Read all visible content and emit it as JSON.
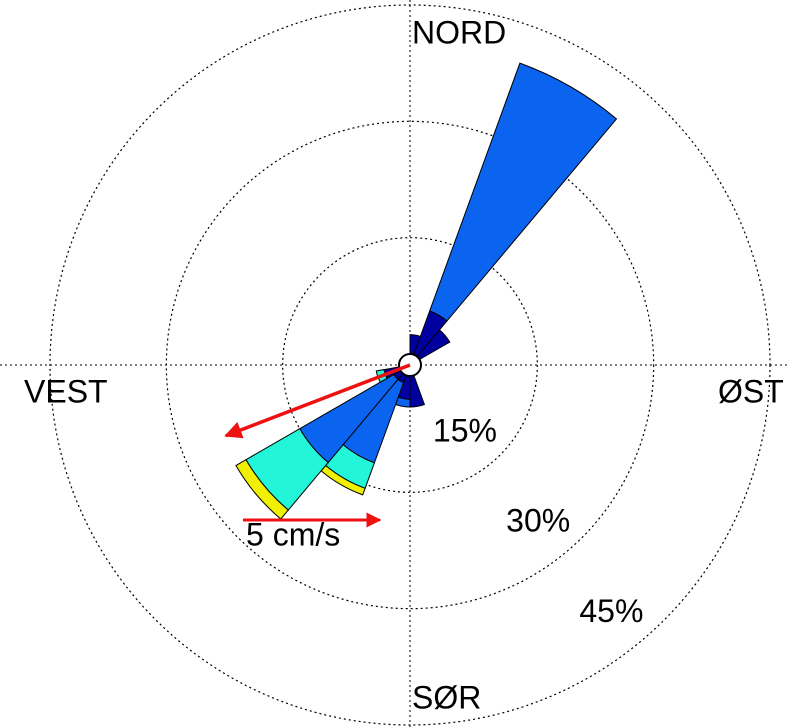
{
  "chart_data": {
    "type": "rose",
    "theta": [
      10,
      30,
      50,
      70,
      90,
      110,
      130,
      150,
      170,
      190,
      210,
      230,
      250,
      270,
      290,
      310,
      330,
      350
    ],
    "sector_width": 20,
    "series": [
      {
        "color": "#0000a0",
        "values": [
          2.5,
          6,
          4.5,
          0,
          0,
          0,
          0,
          0,
          4,
          3,
          1,
          1,
          2,
          0,
          0,
          0,
          0,
          0
        ]
      },
      {
        "color": "#0a64f0",
        "values": [
          0,
          34,
          0,
          0,
          0,
          0,
          0,
          0,
          0,
          1,
          11,
          14,
          0,
          0,
          0,
          0,
          0,
          0
        ]
      },
      {
        "color": "#22f5d8",
        "values": [
          0,
          0,
          0,
          0,
          0,
          0,
          0,
          0,
          0,
          0,
          3.5,
          8,
          1,
          0,
          0,
          0,
          0,
          0
        ]
      },
      {
        "color": "#f0f000",
        "values": [
          0,
          0,
          0,
          0,
          0,
          0,
          0,
          0,
          0,
          0,
          0.9,
          1.5,
          0,
          0,
          0,
          0,
          0,
          0
        ]
      }
    ],
    "rlim": [
      0,
      45
    ],
    "rticks": [
      {
        "value": 15,
        "label": "15%"
      },
      {
        "value": 30,
        "label": "30%"
      },
      {
        "value": 45,
        "label": "45%"
      }
    ],
    "direction_labels": {
      "north": "NORD",
      "east": "ØST",
      "south": "SØR",
      "west": "VEST"
    },
    "mean_vector": {
      "direction": 249,
      "speed": 7.2,
      "color": "#ee1111"
    },
    "scale": {
      "value": 5,
      "label": "5 cm/s"
    },
    "grid": true
  }
}
